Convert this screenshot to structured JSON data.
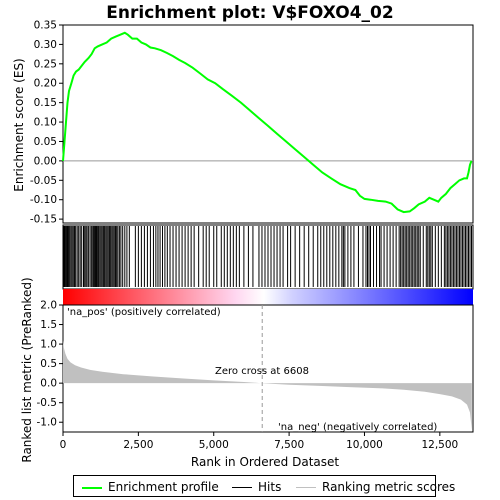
{
  "chart_data": {
    "type": "line",
    "title": "Enrichment plot: V$FOXO4_02",
    "x_axis": {
      "label": "Rank in Ordered Dataset",
      "lim": [
        0,
        13600
      ],
      "ticks": [
        0,
        2500,
        5000,
        7500,
        10000,
        12500
      ],
      "tick_labels": [
        "0",
        "2,500",
        "5,000",
        "7,500",
        "10,000",
        "12,500"
      ]
    },
    "es_panel": {
      "ylabel": "Enrichment score (ES)",
      "ylim": [
        -0.16,
        0.35
      ],
      "ticks": [
        -0.15,
        -0.1,
        -0.05,
        0.0,
        0.05,
        0.1,
        0.15,
        0.2,
        0.25,
        0.3,
        0.35
      ],
      "tick_labels": [
        "-0.15",
        "-0.10",
        "-0.05",
        "0.00",
        "0.05",
        "0.10",
        "0.15",
        "0.20",
        "0.25",
        "0.30",
        "0.35"
      ],
      "series": [
        {
          "name": "Enrichment profile",
          "color": "#00ff00",
          "x": [
            0,
            50,
            100,
            150,
            200,
            280,
            350,
            430,
            520,
            620,
            720,
            850,
            950,
            1050,
            1150,
            1300,
            1450,
            1600,
            1750,
            1900,
            2050,
            2150,
            2300,
            2450,
            2600,
            2750,
            2900,
            3050,
            3250,
            3450,
            3650,
            3850,
            4050,
            4300,
            4550,
            4800,
            5050,
            5300,
            5600,
            5900,
            6200,
            6500,
            6800,
            7100,
            7400,
            7700,
            8000,
            8300,
            8600,
            8900,
            9200,
            9500,
            9700,
            9850,
            10000,
            10200,
            10450,
            10700,
            10900,
            11100,
            11300,
            11500,
            11650,
            11800,
            12000,
            12150,
            12300,
            12450,
            12550,
            12700,
            12850,
            13000,
            13150,
            13300,
            13400,
            13450,
            13500,
            13550
          ],
          "y": [
            0.0,
            0.05,
            0.1,
            0.15,
            0.18,
            0.2,
            0.22,
            0.23,
            0.235,
            0.245,
            0.255,
            0.265,
            0.275,
            0.29,
            0.295,
            0.3,
            0.305,
            0.315,
            0.32,
            0.325,
            0.33,
            0.325,
            0.315,
            0.315,
            0.305,
            0.3,
            0.292,
            0.29,
            0.285,
            0.278,
            0.27,
            0.26,
            0.252,
            0.24,
            0.225,
            0.21,
            0.2,
            0.185,
            0.168,
            0.15,
            0.13,
            0.11,
            0.09,
            0.07,
            0.05,
            0.03,
            0.01,
            -0.01,
            -0.03,
            -0.045,
            -0.06,
            -0.07,
            -0.075,
            -0.09,
            -0.098,
            -0.1,
            -0.103,
            -0.105,
            -0.11,
            -0.125,
            -0.132,
            -0.13,
            -0.122,
            -0.112,
            -0.105,
            -0.095,
            -0.1,
            -0.105,
            -0.095,
            -0.085,
            -0.07,
            -0.06,
            -0.05,
            -0.045,
            -0.045,
            -0.03,
            -0.01,
            0.0
          ]
        }
      ]
    },
    "hits_panel": {
      "name": "Hits",
      "hit_ranks": [
        5,
        20,
        40,
        60,
        90,
        120,
        150,
        180,
        220,
        260,
        300,
        340,
        380,
        420,
        470,
        520,
        570,
        620,
        680,
        720,
        760,
        800,
        850,
        900,
        950,
        990,
        1020,
        1050,
        1080,
        1110,
        1140,
        1180,
        1220,
        1260,
        1300,
        1340,
        1380,
        1420,
        1460,
        1500,
        1540,
        1580,
        1620,
        1660,
        1700,
        1740,
        1780,
        1820,
        1870,
        1920,
        1980,
        2050,
        2120,
        2200,
        2400,
        2500,
        2600,
        2700,
        2800,
        2900,
        3000,
        3080,
        3150,
        3220,
        3300,
        3380,
        3460,
        3550,
        3650,
        3750,
        3850,
        3950,
        4050,
        4150,
        4250,
        4350,
        4500,
        4650,
        4750,
        4850,
        5000,
        5100,
        5250,
        5350,
        5450,
        5550,
        5650,
        5750,
        5850,
        6000,
        6150,
        6300,
        6500,
        6600,
        6700,
        6800,
        6900,
        7000,
        7100,
        7200,
        7300,
        7450,
        7550,
        7700,
        7850,
        8000,
        8150,
        8300,
        8450,
        8550,
        8650,
        8750,
        8850,
        8950,
        9050,
        9150,
        9250,
        9300,
        9350,
        9450,
        9550,
        9650,
        9800,
        9950,
        10050,
        10100,
        10150,
        10200,
        10300,
        10400,
        10500,
        10550,
        10650,
        10750,
        10850,
        10950,
        11050,
        11150,
        11200,
        11250,
        11300,
        11350,
        11400,
        11450,
        11500,
        11550,
        11600,
        11650,
        11700,
        11750,
        11800,
        11850,
        11950,
        12050,
        12100,
        12150,
        12200,
        12250,
        12350,
        12450,
        12550,
        12650,
        12700,
        12750,
        12800,
        12850,
        12900,
        12950,
        13000,
        13050,
        13100,
        13150,
        13200,
        13250,
        13300,
        13350,
        13400,
        13450,
        13500,
        13550
      ]
    },
    "ranked_metric_panel": {
      "ylabel": "Ranked list metric (PreRanked)",
      "ylim": [
        -1.25,
        2.0
      ],
      "ticks": [
        -1.0,
        -0.5,
        0.0,
        0.5,
        1.0,
        1.5,
        2.0
      ],
      "tick_labels": [
        "-1.0",
        "-0.5",
        "0.0",
        "0.5",
        "1.0",
        "1.5",
        "2.0"
      ],
      "series": [
        {
          "name": "Ranking metric scores",
          "color": "#c0c0c0",
          "x": [
            0,
            30,
            80,
            150,
            250,
            400,
            600,
            900,
            1300,
            2000,
            3000,
            4000,
            5000,
            6000,
            6608,
            7500,
            8500,
            9500,
            10500,
            11300,
            12000,
            12500,
            12900,
            13200,
            13400,
            13500,
            13560
          ],
          "y": [
            1.1,
            0.9,
            0.75,
            0.62,
            0.53,
            0.46,
            0.4,
            0.34,
            0.29,
            0.23,
            0.17,
            0.12,
            0.07,
            0.03,
            0.0,
            -0.04,
            -0.07,
            -0.1,
            -0.13,
            -0.17,
            -0.22,
            -0.28,
            -0.34,
            -0.42,
            -0.55,
            -0.75,
            -1.2
          ]
        }
      ],
      "zero_cross_label": "Zero cross at 6608",
      "zero_cross_rank": 6608,
      "pos_label": "'na_pos' (positively correlated)",
      "neg_label": "'na_neg' (negatively correlated)"
    },
    "colors": {
      "es_line": "#00ff00",
      "pos_end": "#ff0000",
      "neg_end": "#0000ff",
      "pos_label": "#ff0000",
      "neg_label": "#0000ff",
      "metric_fill": "#c0c0c0"
    },
    "legend": {
      "placement": "bottom",
      "items": [
        {
          "name": "Enrichment profile",
          "color": "#00ff00"
        },
        {
          "name": "Hits",
          "color": "#000000"
        },
        {
          "name": "Ranking metric scores",
          "color": "#c0c0c0"
        }
      ]
    }
  }
}
